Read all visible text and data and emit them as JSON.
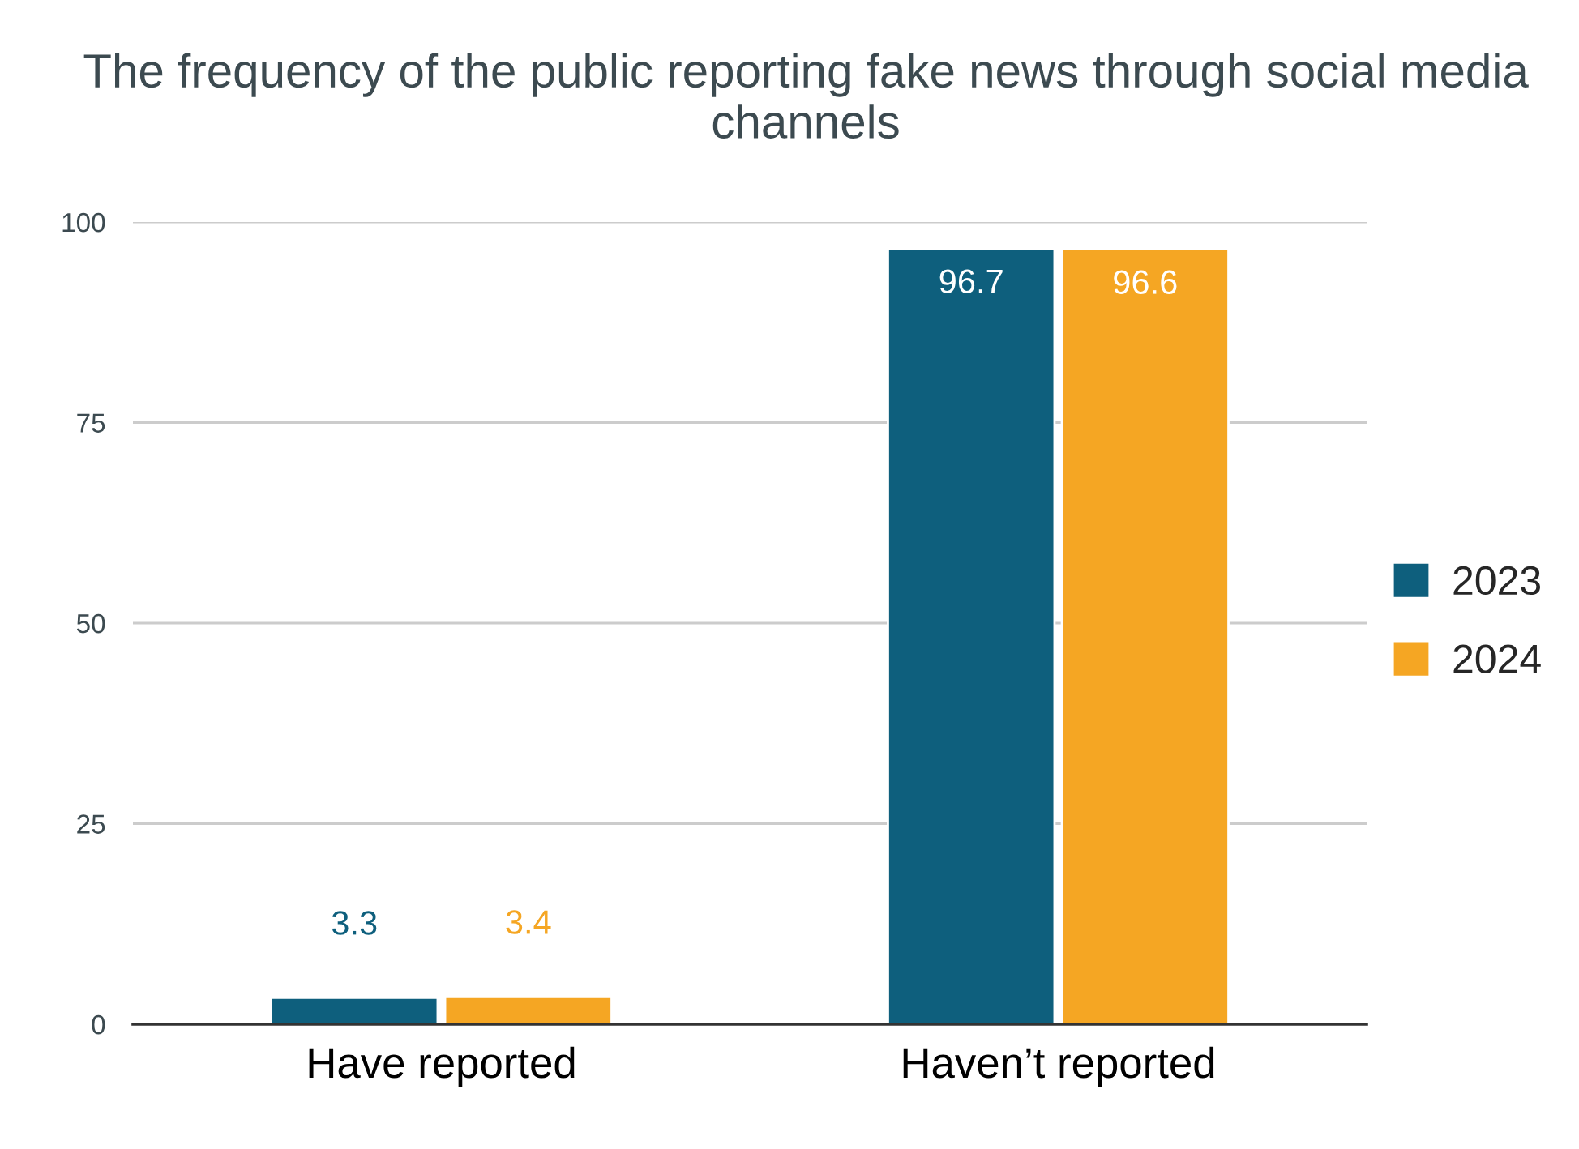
{
  "chart_data": {
    "type": "bar",
    "title": "The frequency of the public reporting fake news through social media channels",
    "categories": [
      "Have reported",
      "Haven’t reported"
    ],
    "series": [
      {
        "name": "2023",
        "color": "#0e5f7d",
        "values": [
          3.3,
          96.7
        ]
      },
      {
        "name": "2024",
        "color": "#f5a623",
        "values": [
          3.4,
          96.6
        ]
      }
    ],
    "ylim": [
      0,
      100
    ],
    "yticks": [
      0,
      25,
      50,
      75,
      100
    ],
    "grid": "y",
    "legend": "right",
    "data_labels": true
  }
}
